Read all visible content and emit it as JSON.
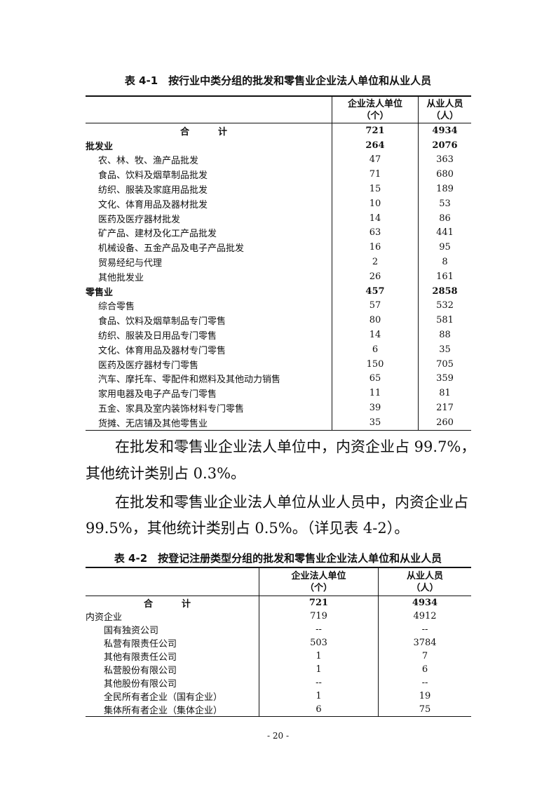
{
  "table1": {
    "title": "表 4-1　按行业中类分组的批发和零售业企业法人单位和从业人员",
    "headers": [
      {
        "line1": "企业法人单位",
        "line2": "（个）"
      },
      {
        "line1": "从业人员",
        "line2": "（人）"
      }
    ],
    "rows": [
      {
        "label": "合　计",
        "units": "721",
        "employees": "4934",
        "type": "total"
      },
      {
        "label": "批发业",
        "units": "264",
        "employees": "2076",
        "type": "group"
      },
      {
        "label": "农、林、牧、渔产品批发",
        "units": "47",
        "employees": "363",
        "type": "sub"
      },
      {
        "label": "食品、饮料及烟草制品批发",
        "units": "71",
        "employees": "680",
        "type": "sub"
      },
      {
        "label": "纺织、服装及家庭用品批发",
        "units": "15",
        "employees": "189",
        "type": "sub"
      },
      {
        "label": "文化、体育用品及器材批发",
        "units": "10",
        "employees": "53",
        "type": "sub"
      },
      {
        "label": "医药及医疗器材批发",
        "units": "14",
        "employees": "86",
        "type": "sub"
      },
      {
        "label": "矿产品、建材及化工产品批发",
        "units": "63",
        "employees": "441",
        "type": "sub"
      },
      {
        "label": "机械设备、五金产品及电子产品批发",
        "units": "16",
        "employees": "95",
        "type": "sub"
      },
      {
        "label": "贸易经纪与代理",
        "units": "2",
        "employees": "8",
        "type": "sub"
      },
      {
        "label": "其他批发业",
        "units": "26",
        "employees": "161",
        "type": "sub"
      },
      {
        "label": "零售业",
        "units": "457",
        "employees": "2858",
        "type": "group"
      },
      {
        "label": "综合零售",
        "units": "57",
        "employees": "532",
        "type": "sub"
      },
      {
        "label": "食品、饮料及烟草制品专门零售",
        "units": "80",
        "employees": "581",
        "type": "sub"
      },
      {
        "label": "纺织、服装及日用品专门零售",
        "units": "14",
        "employees": "88",
        "type": "sub"
      },
      {
        "label": "文化、体育用品及器材专门零售",
        "units": "6",
        "employees": "35",
        "type": "sub"
      },
      {
        "label": "医药及医疗器材专门零售",
        "units": "150",
        "employees": "705",
        "type": "sub"
      },
      {
        "label": "汽车、摩托车、零配件和燃料及其他动力销售",
        "units": "65",
        "employees": "359",
        "type": "sub"
      },
      {
        "label": "家用电器及电子产品专门零售",
        "units": "11",
        "employees": "81",
        "type": "sub"
      },
      {
        "label": "五金、家具及室内装饰材料专门零售",
        "units": "39",
        "employees": "217",
        "type": "sub"
      },
      {
        "label": "货摊、无店铺及其他零售业",
        "units": "35",
        "employees": "260",
        "type": "sub"
      }
    ]
  },
  "paragraphs": [
    {
      "line1": "　　在批发和零售业企业法人单位中，内资企业占 99.7%，",
      "line2": "其他统计类别占 0.3%。"
    },
    {
      "line1": "　　在批发和零售业企业法人单位从业人员中，内资企业占",
      "line2": "99.5%，其他统计类别占 0.5%。（详见表 4-2）。"
    }
  ],
  "table2": {
    "title": "表 4-2　按登记注册类型分组的批发和零售业企业法人单位和从业人员",
    "headers": [
      {
        "line1": "企业法人单位",
        "line2": "（个）"
      },
      {
        "line1": "从业人员",
        "line2": "（人）"
      }
    ],
    "rows": [
      {
        "label": "合　计",
        "units": "721",
        "employees": "4934",
        "type": "total"
      },
      {
        "label": "内资企业",
        "units": "719",
        "employees": "4912",
        "type": "plain"
      },
      {
        "label": "国有独资公司",
        "units": "--",
        "employees": "--",
        "type": "sub"
      },
      {
        "label": "私营有限责任公司",
        "units": "503",
        "employees": "3784",
        "type": "sub"
      },
      {
        "label": "其他有限责任公司",
        "units": "1",
        "employees": "7",
        "type": "sub"
      },
      {
        "label": "私营股份有限公司",
        "units": "1",
        "employees": "6",
        "type": "sub"
      },
      {
        "label": "其他股份有限公司",
        "units": "--",
        "employees": "--",
        "type": "sub"
      },
      {
        "label": "全民所有者企业（国有企业）",
        "units": "1",
        "employees": "19",
        "type": "sub"
      },
      {
        "label": "集体所有者企业（集体企业）",
        "units": "6",
        "employees": "75",
        "type": "sub"
      }
    ]
  },
  "page_number": "- 20 -"
}
